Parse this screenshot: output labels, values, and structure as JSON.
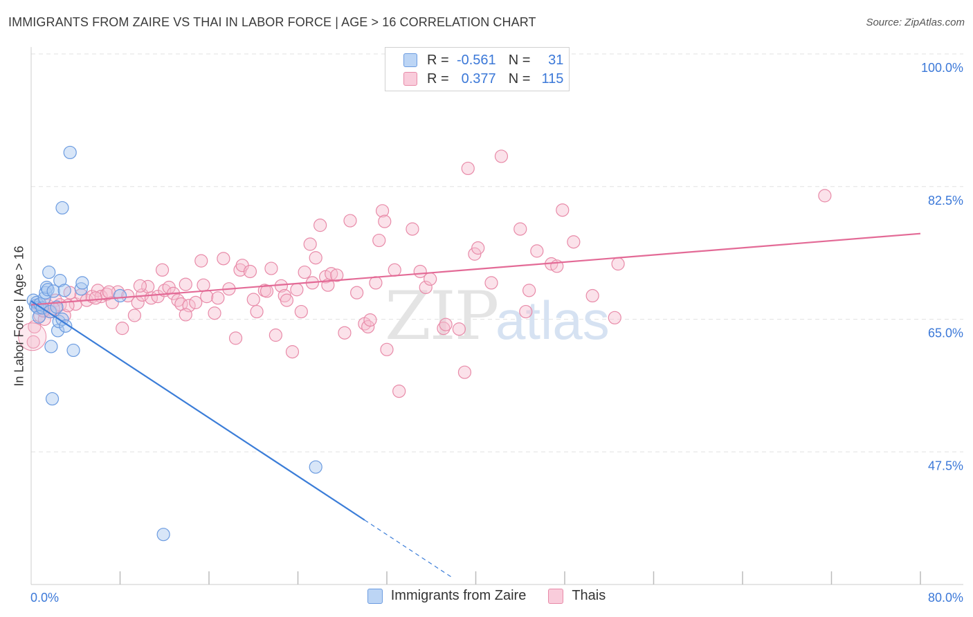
{
  "title": "IMMIGRANTS FROM ZAIRE VS THAI IN LABOR FORCE | AGE > 16 CORRELATION CHART",
  "source": "Source: ZipAtlas.com",
  "watermark": {
    "zip": "ZIP",
    "atlas": "atlas"
  },
  "legend": {
    "rows": [
      {
        "r_label": "R =",
        "r_value": "-0.561",
        "n_label": "N =",
        "n_value": "31"
      },
      {
        "r_label": "R =",
        "r_value": "0.377",
        "n_label": "N =",
        "n_value": "115"
      }
    ]
  },
  "colors": {
    "blue_fill": "#a9c8f0",
    "blue_stroke": "#6b9be0",
    "blue_line": "#3b7dd8",
    "pink_fill": "#f7bfd0",
    "pink_stroke": "#e88aa8",
    "pink_line": "#e36a96",
    "tick_text": "#3b78d8",
    "grid": "#e2e2e2"
  },
  "chart_data": {
    "type": "scatter",
    "title": "IMMIGRANTS FROM ZAIRE VS THAI IN LABOR FORCE | AGE > 16 CORRELATION CHART",
    "xlabel": "",
    "ylabel": "In Labor Force | Age > 16",
    "xlim": [
      0,
      80
    ],
    "ylim": [
      30,
      100
    ],
    "x_tick_labels": [
      "0.0%",
      "80.0%"
    ],
    "y_ticks": [
      47.5,
      65.0,
      82.5,
      100.0
    ],
    "y_tick_labels": [
      "47.5%",
      "65.0%",
      "82.5%",
      "100.0%"
    ],
    "grid": true,
    "legend_position": "top-center",
    "series": [
      {
        "name": "Immigrants from Zaire",
        "r": -0.561,
        "n": 31,
        "points": [
          [
            0.2,
            67.5
          ],
          [
            0.4,
            66.8
          ],
          [
            0.5,
            67.2
          ],
          [
            0.6,
            66.5
          ],
          [
            0.7,
            65.3
          ],
          [
            0.8,
            67.0
          ],
          [
            1.0,
            66.5
          ],
          [
            1.2,
            67.8
          ],
          [
            1.3,
            68.5
          ],
          [
            1.4,
            69.2
          ],
          [
            1.5,
            68.9
          ],
          [
            1.6,
            71.2
          ],
          [
            1.7,
            66.0
          ],
          [
            1.8,
            61.4
          ],
          [
            1.9,
            54.5
          ],
          [
            2.0,
            68.7
          ],
          [
            2.3,
            66.6
          ],
          [
            2.4,
            63.5
          ],
          [
            2.5,
            64.7
          ],
          [
            2.6,
            70.1
          ],
          [
            2.8,
            65.0
          ],
          [
            3.0,
            68.8
          ],
          [
            3.1,
            64.1
          ],
          [
            3.5,
            87.0
          ],
          [
            3.8,
            60.9
          ],
          [
            4.5,
            69.0
          ],
          [
            4.6,
            69.8
          ],
          [
            2.8,
            79.7
          ],
          [
            8.0,
            68.1
          ],
          [
            11.9,
            36.6
          ],
          [
            25.6,
            45.5
          ]
        ],
        "trend": {
          "x": [
            0,
            30
          ],
          "y": [
            67.4,
            38.5
          ]
        },
        "trend_dashed": {
          "x": [
            30,
            38
          ],
          "y": [
            38.5,
            30.8
          ]
        }
      },
      {
        "name": "Thais",
        "r": 0.377,
        "n": 115,
        "points": [
          [
            0.2,
            62.0
          ],
          [
            0.3,
            64.0
          ],
          [
            0.8,
            65.5
          ],
          [
            1.0,
            66.2
          ],
          [
            1.2,
            65.0
          ],
          [
            1.5,
            66.8
          ],
          [
            1.8,
            66.0
          ],
          [
            2.2,
            67.5
          ],
          [
            2.6,
            66.9
          ],
          [
            3.0,
            65.5
          ],
          [
            3.5,
            68.5
          ],
          [
            4.0,
            67.0
          ],
          [
            4.5,
            68.2
          ],
          [
            5.0,
            67.5
          ],
          [
            5.5,
            68.0
          ],
          [
            6.0,
            68.8
          ],
          [
            6.3,
            68.0
          ],
          [
            6.8,
            68.3
          ],
          [
            7.3,
            67.2
          ],
          [
            7.8,
            68.6
          ],
          [
            8.2,
            63.8
          ],
          [
            8.7,
            68.1
          ],
          [
            9.3,
            65.5
          ],
          [
            9.6,
            67.2
          ],
          [
            10.0,
            68.2
          ],
          [
            10.5,
            69.3
          ],
          [
            10.8,
            67.8
          ],
          [
            11.4,
            68.0
          ],
          [
            11.8,
            71.5
          ],
          [
            12.0,
            68.8
          ],
          [
            12.4,
            69.2
          ],
          [
            12.8,
            68.4
          ],
          [
            13.2,
            67.5
          ],
          [
            13.5,
            67.0
          ],
          [
            13.9,
            69.6
          ],
          [
            14.2,
            66.8
          ],
          [
            14.8,
            67.2
          ],
          [
            15.3,
            72.7
          ],
          [
            15.5,
            69.5
          ],
          [
            15.8,
            68.0
          ],
          [
            16.5,
            65.8
          ],
          [
            16.8,
            67.8
          ],
          [
            17.3,
            73.0
          ],
          [
            17.8,
            69.0
          ],
          [
            18.4,
            62.5
          ],
          [
            18.8,
            71.5
          ],
          [
            19.0,
            72.1
          ],
          [
            19.7,
            71.3
          ],
          [
            20.0,
            67.6
          ],
          [
            20.3,
            66.0
          ],
          [
            21.0,
            68.8
          ],
          [
            21.2,
            68.7
          ],
          [
            21.6,
            71.7
          ],
          [
            22.0,
            62.9
          ],
          [
            22.5,
            69.4
          ],
          [
            22.8,
            68.1
          ],
          [
            23.0,
            67.5
          ],
          [
            23.5,
            60.7
          ],
          [
            23.9,
            68.9
          ],
          [
            24.3,
            66.0
          ],
          [
            24.6,
            71.2
          ],
          [
            25.1,
            74.9
          ],
          [
            25.3,
            69.8
          ],
          [
            25.6,
            73.1
          ],
          [
            26.0,
            77.4
          ],
          [
            26.5,
            70.6
          ],
          [
            26.7,
            69.5
          ],
          [
            27.0,
            71.0
          ],
          [
            27.5,
            70.8
          ],
          [
            28.2,
            63.2
          ],
          [
            28.7,
            78.0
          ],
          [
            29.3,
            68.5
          ],
          [
            30.0,
            64.4
          ],
          [
            30.3,
            64.0
          ],
          [
            30.5,
            64.9
          ],
          [
            31.0,
            69.8
          ],
          [
            31.3,
            75.4
          ],
          [
            31.6,
            79.3
          ],
          [
            31.8,
            77.9
          ],
          [
            32.0,
            61.0
          ],
          [
            32.7,
            71.5
          ],
          [
            33.1,
            55.5
          ],
          [
            34.3,
            76.9
          ],
          [
            35.0,
            71.3
          ],
          [
            35.5,
            69.2
          ],
          [
            35.9,
            70.3
          ],
          [
            37.1,
            63.8
          ],
          [
            37.3,
            64.3
          ],
          [
            38.5,
            63.7
          ],
          [
            39.0,
            58.0
          ],
          [
            39.9,
            73.6
          ],
          [
            40.2,
            74.4
          ],
          [
            41.4,
            69.8
          ],
          [
            42.3,
            86.5
          ],
          [
            44.0,
            76.9
          ],
          [
            44.5,
            66.0
          ],
          [
            44.8,
            68.8
          ],
          [
            45.5,
            74.0
          ],
          [
            46.8,
            72.3
          ],
          [
            47.3,
            72.0
          ],
          [
            47.8,
            79.4
          ],
          [
            48.8,
            75.2
          ],
          [
            50.5,
            68.1
          ],
          [
            52.5,
            65.2
          ],
          [
            52.8,
            72.3
          ],
          [
            71.4,
            81.3
          ],
          [
            39.3,
            84.9
          ],
          [
            13.9,
            65.6
          ],
          [
            9.8,
            69.4
          ],
          [
            5.8,
            67.8
          ],
          [
            3.3,
            66.8
          ],
          [
            2.0,
            66.4
          ],
          [
            0.6,
            66.9
          ],
          [
            1.1,
            66.1
          ],
          [
            7.0,
            68.6
          ]
        ],
        "trend": {
          "x": [
            0,
            80
          ],
          "y": [
            66.9,
            76.3
          ]
        }
      }
    ]
  }
}
